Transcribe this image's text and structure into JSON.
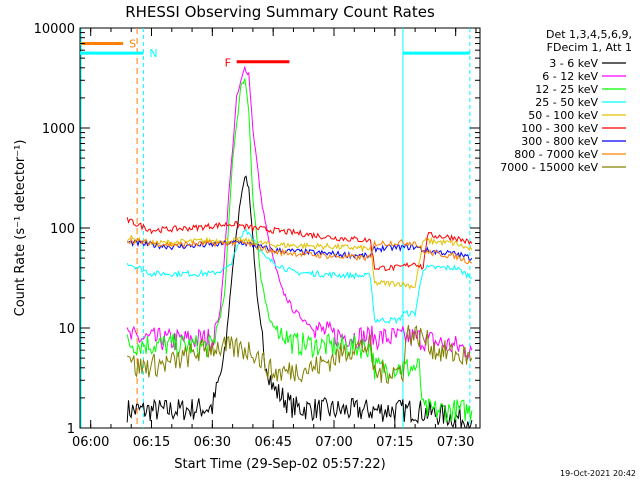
{
  "chart_data": {
    "type": "line",
    "title": "RHESSI Observing Summary Count Rates",
    "xlabel": "Start Time (29-Sep-02 05:57:22)",
    "ylabel": "Count Rate (s⁻¹ detector⁻¹)",
    "yscale": "log",
    "ylim": [
      1,
      10000
    ],
    "xlim": [
      "05:57:22",
      "07:36:00"
    ],
    "x_ticks": [
      "06:00",
      "06:15",
      "06:30",
      "06:45",
      "07:00",
      "07:15",
      "07:30"
    ],
    "y_ticks": [
      "1",
      "10",
      "100",
      "1000",
      "10000"
    ],
    "grid": false,
    "legend_header": [
      "Det 1,3,4,5,6,9,",
      "FDecim 1, Att 1"
    ],
    "legend_position": "right",
    "footer": "19-Oct-2021 20:42",
    "annotations": [
      {
        "label": "S",
        "color": "#ff8000",
        "kind": "flag bar",
        "start": "05:57:22",
        "end": "06:08:00",
        "level": 7000
      },
      {
        "label": "N",
        "color": "#00ffff",
        "kind": "night bar",
        "start": "05:57:22",
        "end": "06:13:00",
        "level": 5600
      },
      {
        "label": "N",
        "color": "#00ffff",
        "kind": "night bar",
        "start": "07:17:00",
        "end": "07:33:30",
        "level": 5600
      },
      {
        "label": "F",
        "color": "#ff0000",
        "kind": "flare bar",
        "start": "06:36:00",
        "end": "06:49:00",
        "level": 4600
      }
    ],
    "series": [
      {
        "name": "3 - 6 keV",
        "color": "#000000",
        "points": [
          [
            "06:09",
            1.5
          ],
          [
            "06:20",
            1.5
          ],
          [
            "06:30",
            1.6
          ],
          [
            "06:33",
            5
          ],
          [
            "06:35",
            40
          ],
          [
            "06:37",
            200
          ],
          [
            "06:38",
            340
          ],
          [
            "06:39",
            250
          ],
          [
            "06:40",
            80
          ],
          [
            "06:41",
            20
          ],
          [
            "06:43",
            5
          ],
          [
            "06:45",
            2.5
          ],
          [
            "06:50",
            1.6
          ],
          [
            "07:00",
            1.5
          ],
          [
            "07:10",
            1.5
          ],
          [
            "07:20",
            1.5
          ],
          [
            "07:34",
            1.2
          ]
        ]
      },
      {
        "name": "6 - 12 keV",
        "color": "#ff00ff",
        "points": [
          [
            "06:09",
            8
          ],
          [
            "06:20",
            7.5
          ],
          [
            "06:30",
            7.8
          ],
          [
            "06:32",
            15
          ],
          [
            "06:34",
            200
          ],
          [
            "06:36",
            2000
          ],
          [
            "06:38",
            4000
          ],
          [
            "06:39",
            3500
          ],
          [
            "06:40",
            1000
          ],
          [
            "06:42",
            200
          ],
          [
            "06:44",
            70
          ],
          [
            "06:47",
            25
          ],
          [
            "06:50",
            15
          ],
          [
            "06:55",
            10
          ],
          [
            "07:00",
            8.5
          ],
          [
            "07:10",
            8
          ],
          [
            "07:20",
            8
          ],
          [
            "07:34",
            6
          ]
        ]
      },
      {
        "name": "12 - 25 keV",
        "color": "#00ff00",
        "points": [
          [
            "06:09",
            7
          ],
          [
            "06:30",
            6.5
          ],
          [
            "06:33",
            20
          ],
          [
            "06:35",
            500
          ],
          [
            "06:37",
            2500
          ],
          [
            "06:38",
            3200
          ],
          [
            "06:39",
            1500
          ],
          [
            "06:40",
            200
          ],
          [
            "06:42",
            30
          ],
          [
            "06:44",
            12
          ],
          [
            "06:50",
            7
          ],
          [
            "07:00",
            6.5
          ],
          [
            "07:09",
            6.5
          ],
          [
            "07:10",
            4
          ],
          [
            "07:17",
            4
          ],
          [
            "07:21",
            4
          ],
          [
            "07:22",
            1.5
          ],
          [
            "07:34",
            1.5
          ]
        ]
      },
      {
        "name": "25 - 50 keV",
        "color": "#00ffff",
        "points": [
          [
            "06:09",
            45
          ],
          [
            "06:15",
            35
          ],
          [
            "06:30",
            35
          ],
          [
            "06:34",
            40
          ],
          [
            "06:36",
            60
          ],
          [
            "06:38",
            100
          ],
          [
            "06:39",
            90
          ],
          [
            "06:41",
            70
          ],
          [
            "06:43",
            50
          ],
          [
            "06:50",
            36
          ],
          [
            "07:00",
            34
          ],
          [
            "07:09",
            33
          ],
          [
            "07:10",
            12
          ],
          [
            "07:16",
            12
          ],
          [
            "07:17",
            14
          ],
          [
            "07:20",
            14
          ],
          [
            "07:22",
            40
          ],
          [
            "07:30",
            40
          ],
          [
            "07:34",
            32
          ]
        ]
      },
      {
        "name": "50 - 100 keV",
        "color": "#e0c000",
        "points": [
          [
            "06:09",
            80
          ],
          [
            "06:15",
            70
          ],
          [
            "06:30",
            75
          ],
          [
            "06:37",
            75
          ],
          [
            "06:45",
            68
          ],
          [
            "07:00",
            65
          ],
          [
            "07:09",
            62
          ],
          [
            "07:10",
            28
          ],
          [
            "07:16",
            28
          ],
          [
            "07:20",
            26
          ],
          [
            "07:22",
            75
          ],
          [
            "07:30",
            70
          ],
          [
            "07:34",
            60
          ]
        ]
      },
      {
        "name": "100 - 300 keV",
        "color": "#ff0000",
        "points": [
          [
            "06:09",
            120
          ],
          [
            "06:15",
            95
          ],
          [
            "06:25",
            100
          ],
          [
            "06:35",
            110
          ],
          [
            "06:40",
            100
          ],
          [
            "06:50",
            90
          ],
          [
            "07:00",
            80
          ],
          [
            "07:09",
            75
          ],
          [
            "07:10",
            40
          ],
          [
            "07:16",
            40
          ],
          [
            "07:20",
            45
          ],
          [
            "07:22",
            40
          ],
          [
            "07:23",
            85
          ],
          [
            "07:30",
            80
          ],
          [
            "07:34",
            70
          ]
        ]
      },
      {
        "name": "300 - 800 keV",
        "color": "#0000ff",
        "points": [
          [
            "06:09",
            72
          ],
          [
            "06:20",
            65
          ],
          [
            "06:30",
            68
          ],
          [
            "06:37",
            72
          ],
          [
            "06:45",
            60
          ],
          [
            "07:00",
            55
          ],
          [
            "07:09",
            52
          ],
          [
            "07:10",
            62
          ],
          [
            "07:20",
            65
          ],
          [
            "07:22",
            60
          ],
          [
            "07:30",
            55
          ],
          [
            "07:34",
            50
          ]
        ]
      },
      {
        "name": "800 - 7000 keV",
        "color": "#ff8000",
        "points": [
          [
            "06:09",
            75
          ],
          [
            "06:20",
            68
          ],
          [
            "06:30",
            70
          ],
          [
            "06:37",
            72
          ],
          [
            "06:45",
            58
          ],
          [
            "07:00",
            52
          ],
          [
            "07:09",
            50
          ],
          [
            "07:10",
            70
          ],
          [
            "07:20",
            72
          ],
          [
            "07:22",
            58
          ],
          [
            "07:30",
            52
          ],
          [
            "07:34",
            45
          ]
        ]
      },
      {
        "name": "7000 - 15000 keV",
        "color": "#808000",
        "points": [
          [
            "06:09",
            6.5
          ],
          [
            "06:11",
            4
          ],
          [
            "06:20",
            4.5
          ],
          [
            "06:30",
            6.5
          ],
          [
            "06:40",
            6
          ],
          [
            "06:45",
            3.5
          ],
          [
            "06:55",
            4
          ],
          [
            "07:00",
            5
          ],
          [
            "07:05",
            6.5
          ],
          [
            "07:09",
            6.5
          ],
          [
            "07:10",
            3.5
          ],
          [
            "07:17",
            3.8
          ],
          [
            "07:18",
            9
          ],
          [
            "07:22",
            8
          ],
          [
            "07:25",
            6
          ],
          [
            "07:34",
            5
          ]
        ]
      }
    ]
  }
}
